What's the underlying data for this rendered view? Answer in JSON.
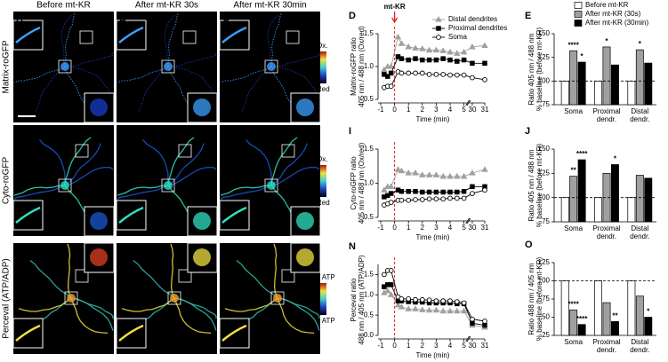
{
  "column_titles": [
    "Before mt-KR",
    "After mt-KR 30s",
    "After mt-KR 30min"
  ],
  "row_labels": [
    "Matrix-roGFP",
    "Cyto-roGFP",
    "Perceval (ATP/ADP)"
  ],
  "panel_letters": [
    "A",
    "B",
    "C",
    "F",
    "G",
    "H",
    "K",
    "L",
    "M"
  ],
  "colorbar_labels": [
    [
      "Ox.",
      "Red"
    ],
    [
      "Ox.",
      "Red"
    ],
    [
      "↑ ATP",
      "↓ ATP"
    ]
  ],
  "inset_labels": [
    "i",
    "ii"
  ],
  "scale_bar": "20μm",
  "chart_data": [
    {
      "type": "line",
      "panel": "D",
      "ylabel": [
        "Matrix-roGFP ratio",
        "405 nm / 488 nm (Ox/red)"
      ],
      "xlabel": "Time (min)",
      "x": [
        -0.75,
        -0.5,
        -0.25,
        0.25,
        0.5,
        1,
        1.5,
        2,
        2.5,
        3,
        3.5,
        4,
        4.5,
        5,
        30,
        31
      ],
      "xlim": [
        -1,
        31
      ],
      "axis_break": [
        5,
        30
      ],
      "xticks": [
        -1,
        0,
        1,
        2,
        3,
        4,
        5,
        30,
        31
      ],
      "ylim": [
        0.5,
        1.5
      ],
      "yticks": [
        {
          "value": 0.5,
          "label": "0.5"
        },
        {
          "value": 1,
          "label": "1.0"
        },
        {
          "value": 1.5,
          "label": "1.5"
        }
      ],
      "event": {
        "x": 0,
        "label": "mt-KR",
        "color": "#e02020"
      },
      "legend": true,
      "series": [
        {
          "name": "Distal dendrites",
          "color": "#a0a0a0",
          "marker": "triangle",
          "values": [
            0.95,
            1.0,
            1.0,
            1.45,
            1.35,
            1.3,
            1.28,
            1.27,
            1.25,
            1.25,
            1.24,
            1.22,
            1.2,
            1.22,
            1.3,
            1.32
          ]
        },
        {
          "name": "Proximal dendrites",
          "color": "#000000",
          "marker": "square",
          "values": [
            0.88,
            0.85,
            0.9,
            1.15,
            1.12,
            1.1,
            1.12,
            1.1,
            1.1,
            1.1,
            1.12,
            1.1,
            1.08,
            1.1,
            1.05,
            1.05
          ]
        },
        {
          "name": "Soma",
          "color": "#000000",
          "marker": "circle",
          "values": [
            0.68,
            0.7,
            0.7,
            0.92,
            0.9,
            0.9,
            0.9,
            0.9,
            0.88,
            0.88,
            0.88,
            0.87,
            0.87,
            0.87,
            0.83,
            0.8
          ]
        }
      ]
    },
    {
      "type": "bar",
      "panel": "E",
      "ylabel": [
        "Ratio 405 nm / 488 nm",
        "% baseline (before mt-KR)"
      ],
      "categories": [
        [
          "Soma"
        ],
        [
          "Proximal",
          "dendr."
        ],
        [
          "Distal",
          "dendr."
        ]
      ],
      "ylim": [
        75,
        150
      ],
      "yticks": [
        75,
        100,
        125,
        150
      ],
      "reference": 100,
      "legend": true,
      "series": [
        {
          "name": "Before mt-KR",
          "color": "#ffffff",
          "values": [
            100,
            100,
            100
          ],
          "significance": [
            null,
            null,
            null
          ]
        },
        {
          "name": "After mt-KR (30s)",
          "color": "#a0a0a0",
          "values": [
            132,
            136,
            133
          ],
          "significance": [
            "****",
            "*",
            "*"
          ]
        },
        {
          "name": "After mt-KR (30min)",
          "color": "#000000",
          "values": [
            120,
            117,
            119
          ],
          "significance": [
            "*",
            null,
            null
          ]
        }
      ]
    },
    {
      "type": "line",
      "panel": "I",
      "ylabel": [
        "Cyto-roGFP ratio",
        "405 nm / 488 nm (Ox/red)"
      ],
      "xlabel": "Time (min)",
      "x": [
        -0.75,
        -0.5,
        -0.25,
        0.25,
        0.5,
        1,
        1.5,
        2,
        2.5,
        3,
        3.5,
        4,
        4.5,
        5,
        30,
        31
      ],
      "xlim": [
        -1,
        31
      ],
      "axis_break": [
        5,
        30
      ],
      "xticks": [
        -1,
        0,
        1,
        2,
        3,
        4,
        5,
        30,
        31
      ],
      "ylim": [
        0.5,
        1.5
      ],
      "yticks": [
        {
          "value": 0.5,
          "label": "0.5"
        },
        {
          "value": 1,
          "label": "1.0"
        },
        {
          "value": 1.5,
          "label": "1.5"
        }
      ],
      "event": {
        "x": 0,
        "color": "#e02020"
      },
      "series": [
        {
          "color": "#a0a0a0",
          "marker": "triangle",
          "values": [
            0.9,
            0.95,
            0.95,
            1.2,
            1.18,
            1.15,
            1.15,
            1.12,
            1.12,
            1.12,
            1.1,
            1.1,
            1.1,
            1.1,
            1.15,
            1.2
          ]
        },
        {
          "color": "#000000",
          "marker": "square",
          "values": [
            0.8,
            0.82,
            0.85,
            0.9,
            0.88,
            0.88,
            0.88,
            0.87,
            0.87,
            0.87,
            0.87,
            0.87,
            0.87,
            0.88,
            0.95,
            0.95
          ]
        },
        {
          "color": "#000000",
          "marker": "circle",
          "values": [
            0.68,
            0.7,
            0.72,
            0.75,
            0.75,
            0.75,
            0.76,
            0.76,
            0.77,
            0.77,
            0.77,
            0.78,
            0.78,
            0.78,
            0.85,
            0.9
          ]
        }
      ]
    },
    {
      "type": "bar",
      "panel": "J",
      "ylabel": [
        "Ratio 405 nm / 488 nm",
        "% baseline (before mt-KR)"
      ],
      "categories": [
        [
          "Soma"
        ],
        [
          "Proximal",
          "dendr."
        ],
        [
          "Distal",
          "dendr."
        ]
      ],
      "ylim": [
        75,
        150
      ],
      "yticks": [
        75,
        100,
        125,
        150
      ],
      "reference": 100,
      "series": [
        {
          "color": "#ffffff",
          "values": [
            100,
            100,
            100
          ],
          "significance": [
            null,
            null,
            null
          ]
        },
        {
          "color": "#a0a0a0",
          "values": [
            122,
            125,
            123
          ],
          "significance": [
            "**",
            null,
            null
          ]
        },
        {
          "color": "#000000",
          "values": [
            139,
            134,
            120
          ],
          "significance": [
            "****",
            "*",
            null
          ]
        }
      ]
    },
    {
      "type": "line",
      "panel": "N",
      "ylabel": [
        "Perceval ratio",
        "488 nm / 405 nm (ATP/ADP)"
      ],
      "xlabel": "Time (min)",
      "x": [
        -0.75,
        -0.5,
        -0.25,
        0.25,
        0.5,
        1,
        1.5,
        2,
        2.5,
        3,
        3.5,
        4,
        4.5,
        5,
        30,
        31
      ],
      "xlim": [
        -1,
        31
      ],
      "axis_break": [
        5,
        30
      ],
      "xticks": [
        -1,
        0,
        1,
        2,
        3,
        4,
        5,
        30,
        31
      ],
      "ylim": [
        0,
        1.75
      ],
      "yticks": [
        {
          "value": 0,
          "label": "0.0"
        },
        {
          "value": 0.5,
          "label": "0.5"
        },
        {
          "value": 1,
          "label": "1.0"
        },
        {
          "value": 1.5,
          "label": "1.5"
        }
      ],
      "event": {
        "x": 0,
        "color": "#e02020"
      },
      "series": [
        {
          "color": "#a0a0a0",
          "marker": "triangle",
          "values": [
            1.05,
            1.1,
            1.0,
            0.75,
            0.7,
            0.65,
            0.65,
            0.63,
            0.62,
            0.62,
            0.6,
            0.6,
            0.6,
            0.6,
            0.25,
            0.2
          ]
        },
        {
          "color": "#000000",
          "marker": "square",
          "values": [
            1.2,
            1.25,
            1.25,
            0.85,
            0.85,
            0.83,
            0.82,
            0.82,
            0.8,
            0.8,
            0.8,
            0.8,
            0.78,
            0.78,
            0.3,
            0.25
          ]
        },
        {
          "color": "#000000",
          "marker": "circle",
          "values": [
            1.5,
            1.6,
            1.6,
            0.95,
            0.9,
            0.9,
            0.88,
            0.88,
            0.87,
            0.85,
            0.85,
            0.85,
            0.83,
            0.8,
            0.4,
            0.35
          ]
        }
      ]
    },
    {
      "type": "bar",
      "panel": "O",
      "ylabel": [
        "Ratio 488 nm / 405 nm",
        "% baseline (before mt-KR)"
      ],
      "categories": [
        [
          "Soma"
        ],
        [
          "Proximal",
          "dendr."
        ],
        [
          "Distal",
          "dendr."
        ]
      ],
      "ylim": [
        25,
        125
      ],
      "yticks": [
        25,
        50,
        75,
        100,
        125
      ],
      "reference": 100,
      "series": [
        {
          "color": "#ffffff",
          "values": [
            100,
            100,
            100
          ],
          "significance": [
            null,
            null,
            null
          ]
        },
        {
          "color": "#a0a0a0",
          "values": [
            60,
            70,
            79
          ],
          "significance": [
            "****",
            null,
            null
          ]
        },
        {
          "color": "#000000",
          "values": [
            40,
            44,
            50
          ],
          "significance": [
            "****",
            "**",
            "*"
          ]
        }
      ]
    }
  ]
}
